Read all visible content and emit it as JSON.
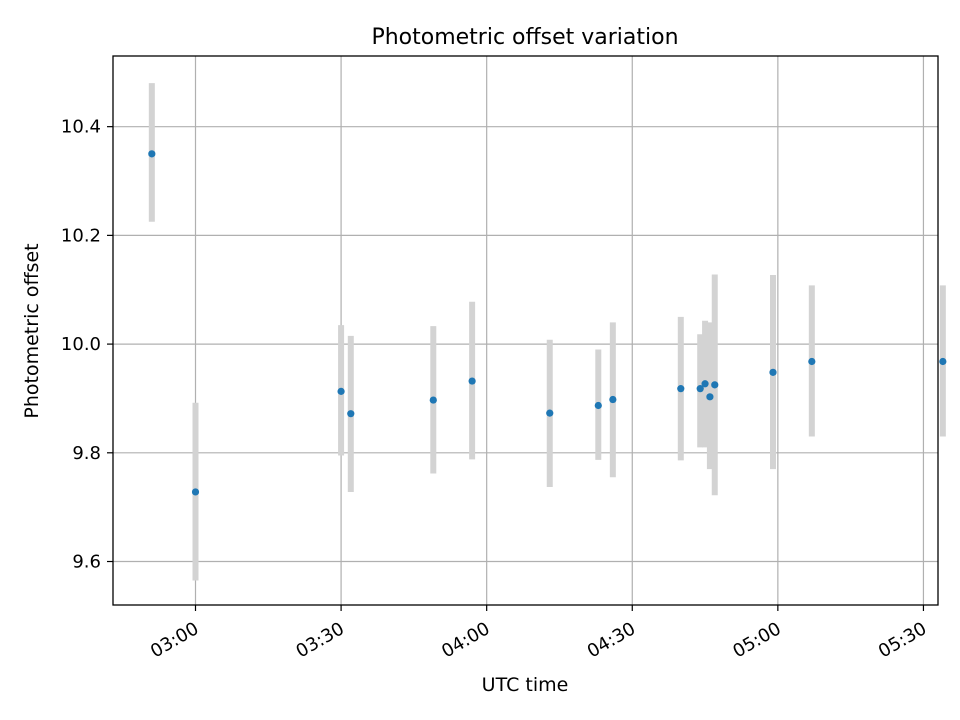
{
  "chart_data": {
    "type": "scatter",
    "title": "Photometric offset variation",
    "xlabel": "UTC time",
    "ylabel": "Photometric offset",
    "x_axis": "time",
    "xlim": [
      "02:43",
      "05:33"
    ],
    "ylim": [
      9.52,
      10.53
    ],
    "x_ticks": [
      "03:00",
      "03:30",
      "04:00",
      "04:30",
      "05:00",
      "05:30"
    ],
    "y_ticks": [
      "9.6",
      "9.8",
      "10.0",
      "10.2",
      "10.4"
    ],
    "grid": true,
    "marker_color": "#1f77b4",
    "errorbar_color": "#d3d3d3",
    "points": [
      {
        "x": "02:51",
        "y": 10.35,
        "ylow": 10.225,
        "yhigh": 10.48
      },
      {
        "x": "03:00",
        "y": 9.728,
        "ylow": 9.565,
        "yhigh": 9.892
      },
      {
        "x": "03:30",
        "y": 9.913,
        "ylow": 9.795,
        "yhigh": 10.035
      },
      {
        "x": "03:32",
        "y": 9.872,
        "ylow": 9.728,
        "yhigh": 10.015
      },
      {
        "x": "03:49",
        "y": 9.897,
        "ylow": 9.762,
        "yhigh": 10.033
      },
      {
        "x": "03:57",
        "y": 9.932,
        "ylow": 9.788,
        "yhigh": 10.078
      },
      {
        "x": "04:13",
        "y": 9.873,
        "ylow": 9.737,
        "yhigh": 10.008
      },
      {
        "x": "04:23",
        "y": 9.887,
        "ylow": 9.787,
        "yhigh": 9.99
      },
      {
        "x": "04:26",
        "y": 9.898,
        "ylow": 9.755,
        "yhigh": 10.04
      },
      {
        "x": "04:40",
        "y": 9.918,
        "ylow": 9.786,
        "yhigh": 10.05
      },
      {
        "x": "04:44",
        "y": 9.918,
        "ylow": 9.81,
        "yhigh": 10.018
      },
      {
        "x": "04:45",
        "y": 9.927,
        "ylow": 9.81,
        "yhigh": 10.043
      },
      {
        "x": "04:46",
        "y": 9.903,
        "ylow": 9.77,
        "yhigh": 10.04
      },
      {
        "x": "04:47",
        "y": 9.925,
        "ylow": 9.722,
        "yhigh": 10.128
      },
      {
        "x": "04:59",
        "y": 9.948,
        "ylow": 9.77,
        "yhigh": 10.127
      },
      {
        "x": "05:07",
        "y": 9.968,
        "ylow": 9.83,
        "yhigh": 10.108
      },
      {
        "x": "05:34",
        "y": 9.968,
        "ylow": 9.83,
        "yhigh": 10.108
      }
    ]
  }
}
